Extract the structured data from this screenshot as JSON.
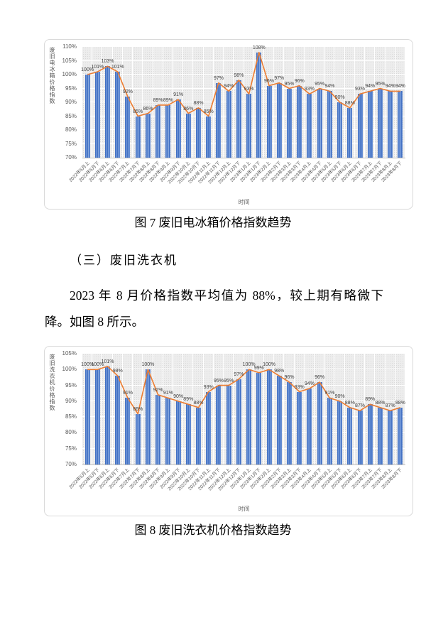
{
  "page": {
    "fig7_caption": "图 7  废旧电冰箱价格指数趋势",
    "section_heading": "（三）废旧洗衣机",
    "paragraph": "2023 年 8 月价格指数平均值为 88%，较上期有略微下降。如图 8 所示。",
    "fig8_caption": "图 8  废旧洗衣机价格指数趋势"
  },
  "colors": {
    "bar": "#4472C4",
    "bar_stripe": "#86A8E0",
    "line": "#ED7D31",
    "plot_bg": "#EDEDED",
    "grid": "#FFFFFF",
    "axis_text": "#595959",
    "label_text": "#404040",
    "chart_border": "#D9D9D9"
  },
  "chart_data": [
    {
      "type": "bar",
      "overlay": "line",
      "title": "",
      "ylabel": "废旧电冰箱价格指数",
      "xlabel": "时间",
      "ylim": [
        70,
        110
      ],
      "ytick_step": 5,
      "grid": true,
      "legend": false,
      "value_suffix": "%",
      "categories": [
        "2022年5月上",
        "2022年5月下",
        "2022年6月上",
        "2022年6月下",
        "2022年7月上",
        "2022年7月下",
        "2022年8月上",
        "2022年8月下",
        "2022年9月上",
        "2022年9月下",
        "2022年10月上",
        "2022年10月下",
        "2022年11月上",
        "2022年11月下",
        "2022年12月上",
        "2022年12月下",
        "2023年1月上",
        "2023年1月下",
        "2023年2月上",
        "2023年2月下",
        "2023年3月上",
        "2023年3月下",
        "2023年4月上",
        "2023年4月下",
        "2023年5月上",
        "2023年5月下",
        "2023年6月上",
        "2023年6月下",
        "2023年7月上",
        "2023年7月下",
        "2023年8月上",
        "2023年8月下"
      ],
      "values": [
        100,
        101,
        103,
        101,
        92,
        85,
        86,
        89,
        89,
        91,
        86,
        88,
        85,
        97,
        94,
        98,
        93,
        108,
        96,
        97,
        95,
        96,
        93,
        95,
        94,
        90,
        88,
        93,
        94,
        95,
        94,
        94
      ]
    },
    {
      "type": "bar",
      "overlay": "line",
      "title": "",
      "ylabel": "废旧洗衣机价格指数",
      "xlabel": "时间",
      "ylim": [
        70,
        105
      ],
      "ytick_step": 5,
      "grid": true,
      "legend": false,
      "value_suffix": "%",
      "categories": [
        "2022年5月上",
        "2022年5月下",
        "2022年6月上",
        "2022年6月下",
        "2022年7月上",
        "2022年7月下",
        "2022年8月上",
        "2022年8月下",
        "2022年9月上",
        "2022年9月下",
        "2022年10月上",
        "2022年10月下",
        "2022年11月上",
        "2022年11月下",
        "2022年12月上",
        "2022年12月下",
        "2023年1月上",
        "2023年1月下",
        "2023年2月上",
        "2023年2月下",
        "2023年3月上",
        "2023年3月下",
        "2023年4月上",
        "2023年4月下",
        "2023年5月上",
        "2023年5月下",
        "2023年6月上",
        "2023年6月下",
        "2023年7月上",
        "2023年7月下",
        "2023年8月上",
        "2023年8月下"
      ],
      "values": [
        100,
        100,
        101,
        98,
        91,
        86,
        100,
        92,
        91,
        90,
        89,
        88,
        93,
        95,
        95,
        97,
        100,
        99,
        100,
        98,
        96,
        93,
        94,
        96,
        91,
        90,
        88,
        87,
        89,
        88,
        87,
        88
      ]
    }
  ]
}
